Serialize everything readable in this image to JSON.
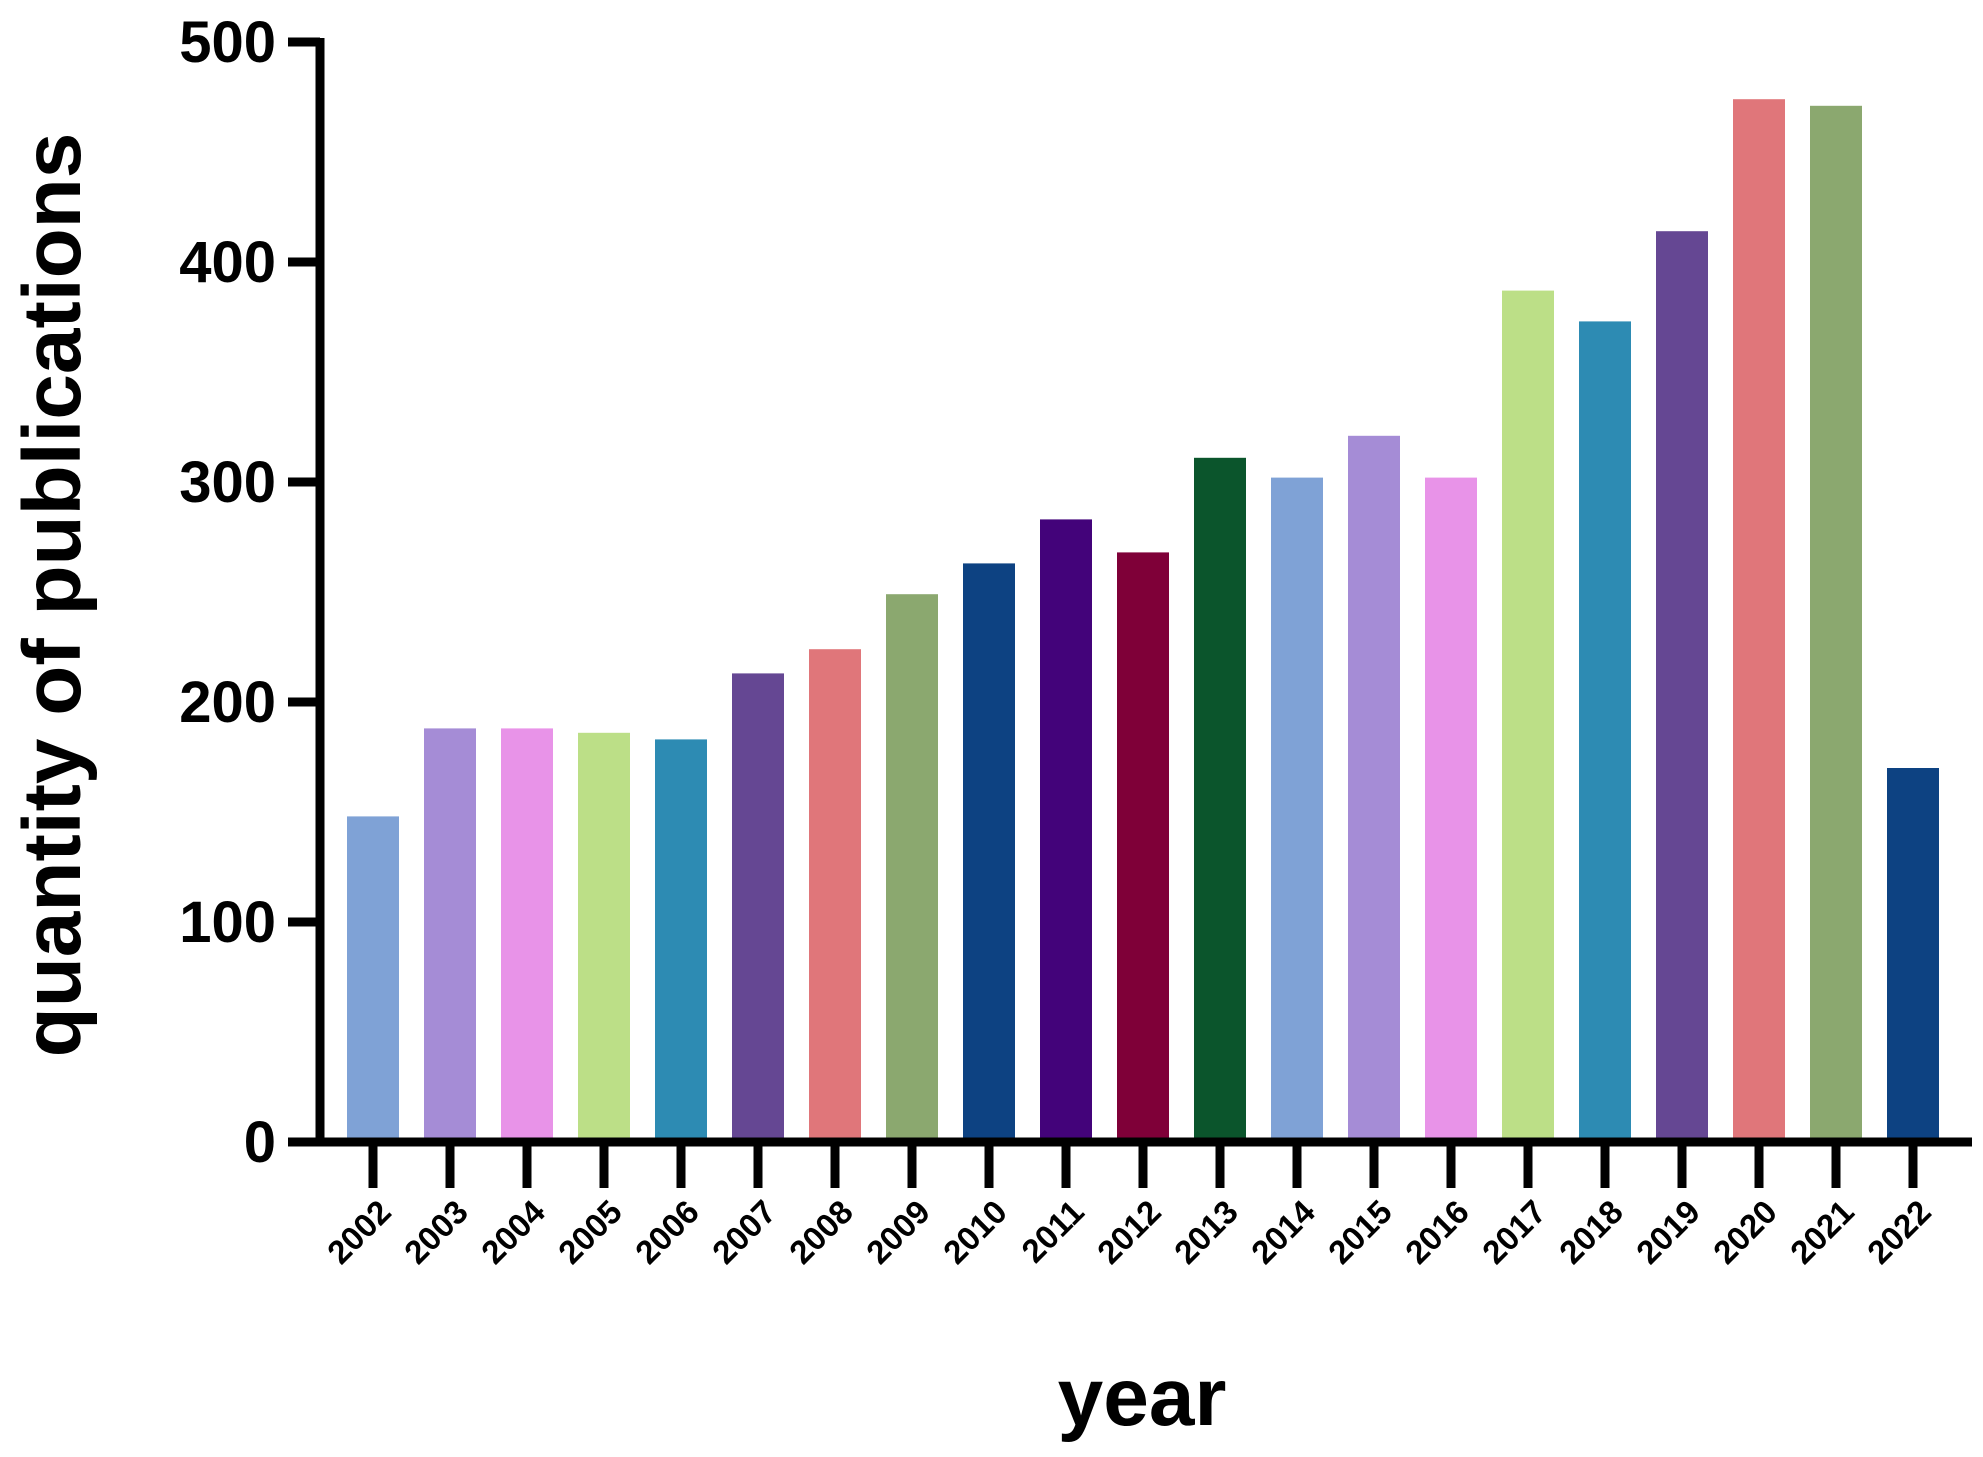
{
  "chart_data": {
    "type": "bar",
    "title": "",
    "xlabel": "year",
    "ylabel": "quantity of publications",
    "ylim": [
      0,
      500
    ],
    "yticks": [
      0,
      100,
      200,
      300,
      400,
      500
    ],
    "grid": false,
    "legend": "none",
    "categories": [
      "2002",
      "2003",
      "2004",
      "2005",
      "2006",
      "2007",
      "2008",
      "2009",
      "2010",
      "2011",
      "2012",
      "2013",
      "2014",
      "2015",
      "2016",
      "2017",
      "2018",
      "2019",
      "2020",
      "2021",
      "2022"
    ],
    "values": [
      148,
      188,
      188,
      186,
      183,
      213,
      224,
      249,
      263,
      283,
      268,
      311,
      302,
      321,
      302,
      387,
      373,
      414,
      474,
      471,
      170
    ],
    "colors": [
      "#7fa2d6",
      "#a58cd6",
      "#e893e8",
      "#bcdf87",
      "#2d8bb3",
      "#654793",
      "#e0767a",
      "#8ba86f",
      "#0d4282",
      "#43037a",
      "#7f0038",
      "#0b552c",
      "#7fa2d6",
      "#a58cd6",
      "#e893e8",
      "#bcdf87",
      "#2d8bb3",
      "#654793",
      "#e0767a",
      "#8ba86f",
      "#0d4282"
    ]
  }
}
